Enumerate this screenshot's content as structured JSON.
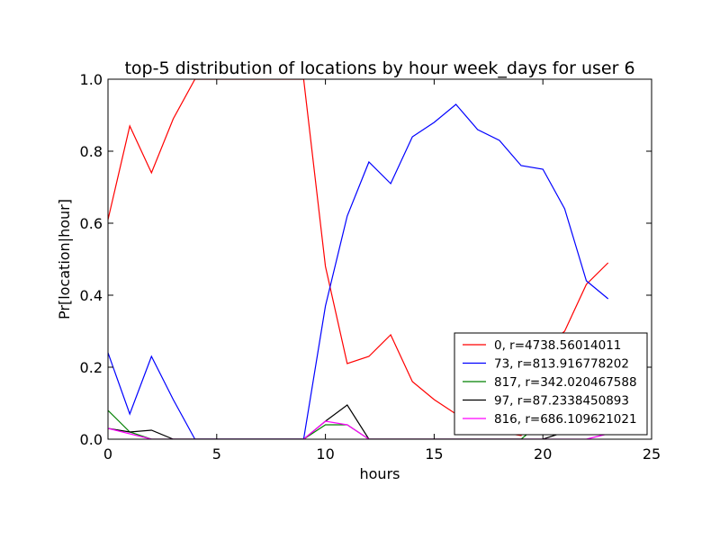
{
  "chart_data": {
    "type": "line",
    "title": "top-5 distribution of locations by hour week_days for user 6",
    "xlabel": "hours",
    "ylabel": "Pr[location|hour]",
    "xlim": [
      0,
      25
    ],
    "ylim": [
      0,
      1.0
    ],
    "xticks": [
      0,
      5,
      10,
      15,
      20,
      25
    ],
    "xtick_labels": [
      "0",
      "5",
      "10",
      "15",
      "20",
      "25"
    ],
    "yticks": [
      0.0,
      0.2,
      0.4,
      0.6,
      0.8,
      1.0
    ],
    "ytick_labels": [
      "0.0",
      "0.2",
      "0.4",
      "0.6",
      "0.8",
      "1.0"
    ],
    "grid": false,
    "legend_position": "lower-right",
    "x": [
      0,
      1,
      2,
      3,
      4,
      5,
      6,
      7,
      8,
      9,
      10,
      11,
      12,
      13,
      14,
      15,
      16,
      17,
      18,
      19,
      20,
      21,
      22,
      23
    ],
    "series": [
      {
        "name": "0, r=4738.56014011",
        "color": "#ff0000",
        "values": [
          0.61,
          0.87,
          0.74,
          0.89,
          1.0,
          1.0,
          1.0,
          1.0,
          1.0,
          1.0,
          0.48,
          0.21,
          0.23,
          0.29,
          0.16,
          0.11,
          0.07,
          0.05,
          0.02,
          0.01,
          0.25,
          0.3,
          0.43,
          0.49
        ]
      },
      {
        "name": "73, r=813.916778202",
        "color": "#0000ff",
        "values": [
          0.24,
          0.07,
          0.23,
          0.11,
          0.0,
          0.0,
          0.0,
          0.0,
          0.0,
          0.0,
          0.37,
          0.62,
          0.77,
          0.71,
          0.84,
          0.88,
          0.93,
          0.86,
          0.83,
          0.76,
          0.75,
          0.64,
          0.44,
          0.39
        ]
      },
      {
        "name": "817, r=342.020467588",
        "color": "#008000",
        "values": [
          0.08,
          0.02,
          0.0,
          0.0,
          0.0,
          0.0,
          0.0,
          0.0,
          0.0,
          0.0,
          0.04,
          0.04,
          0.0,
          0.0,
          0.0,
          0.0,
          0.0,
          0.0,
          0.0,
          0.0,
          0.05,
          0.03,
          0.03,
          0.03
        ]
      },
      {
        "name": "97, r=87.2338450893",
        "color": "#000000",
        "values": [
          0.03,
          0.02,
          0.025,
          0.0,
          0.0,
          0.0,
          0.0,
          0.0,
          0.0,
          0.0,
          0.05,
          0.095,
          0.0,
          0.0,
          0.0,
          0.0,
          0.0,
          0.0,
          0.0,
          0.0,
          0.0,
          0.02,
          0.02,
          0.02
        ]
      },
      {
        "name": "816, r=686.109621021",
        "color": "#ff00ff",
        "values": [
          0.03,
          0.015,
          0.0,
          0.0,
          0.0,
          0.0,
          0.0,
          0.0,
          0.0,
          0.0,
          0.05,
          0.04,
          0.0,
          0.0,
          0.0,
          0.0,
          0.0,
          0.0,
          0.0,
          0.0,
          0.0,
          0.0,
          0.0,
          0.015
        ]
      }
    ]
  }
}
